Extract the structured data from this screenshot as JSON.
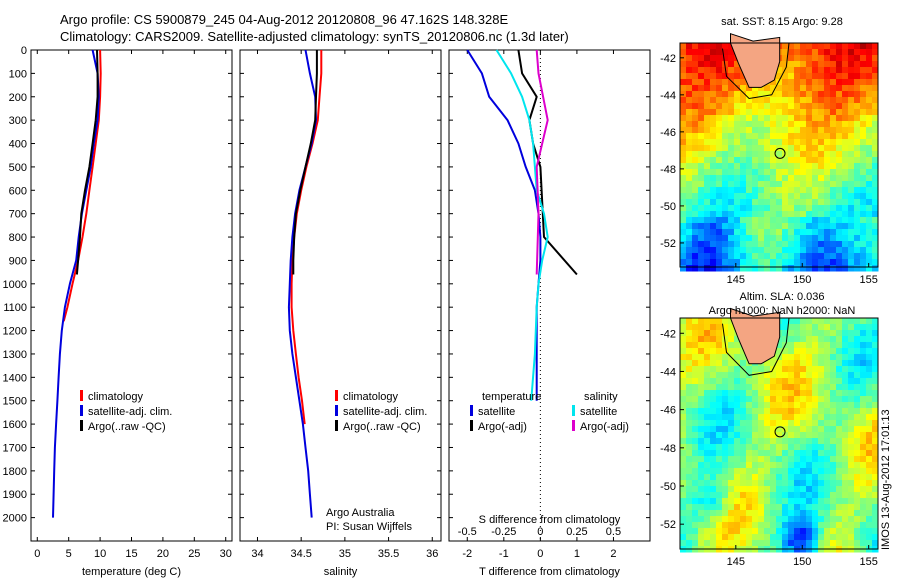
{
  "header": {
    "line1": "Argo profile: CS 5900879_245 04-Aug-2012 20120808_96 47.162S 148.328E",
    "line2": "Climatology: CARS2009. Satellite-adjusted climatology: synTS_20120806.nc (1.3d later)"
  },
  "colors": {
    "red": "#ff0000",
    "blue": "#0000dd",
    "black": "#000000",
    "cyan": "#00e5ee",
    "magenta": "#dd00cc"
  },
  "legends": {
    "profile": [
      {
        "label": "climatology",
        "color": "#ff0000"
      },
      {
        "label": "satellite-adj. clim.",
        "color": "#0000dd"
      },
      {
        "label": "Argo(..raw -QC)",
        "color": "#000000"
      }
    ],
    "difference": {
      "temperature_header": "temperature",
      "salinity_header": "salinity",
      "temperature": [
        {
          "label": "satellite",
          "color": "#0000dd"
        },
        {
          "label": "Argo(-adj)",
          "color": "#000000"
        }
      ],
      "salinity": [
        {
          "label": "satellite",
          "color": "#00e5ee"
        },
        {
          "label": "Argo(-adj)",
          "color": "#dd00cc"
        }
      ]
    }
  },
  "credits": {
    "line1": "Argo Australia",
    "line2": "PI: Susan Wijffels"
  },
  "maps": {
    "sst_title": "sat. SST: 8.15 Argo: 9.28",
    "sla_title1": "Altim. SLA: 0.036",
    "sla_title2": "Argo h1000: NaN h2000: NaN",
    "lat_ticks": [
      "-42",
      "-44",
      "-46",
      "-48",
      "-50",
      "-52"
    ],
    "lon_ticks": [
      "145",
      "150",
      "155"
    ],
    "argo_position": {
      "lon": 148.328,
      "lat": -47.162
    }
  },
  "imos_stamp": "IMOS 13-Aug-2012 17:01:13",
  "chart_data": [
    {
      "type": "line",
      "id": "temperature",
      "xlabel": "temperature (deg C)",
      "ylabel": "",
      "xlim": [
        -1,
        31
      ],
      "ylim": [
        2100,
        0
      ],
      "x_ticks": [
        0,
        5,
        10,
        15,
        20,
        25,
        30
      ],
      "y_ticks": [
        0,
        100,
        200,
        300,
        400,
        500,
        600,
        700,
        800,
        900,
        1000,
        1100,
        1200,
        1300,
        1400,
        1500,
        1600,
        1700,
        1800,
        1900,
        2000
      ],
      "series": [
        {
          "name": "climatology",
          "color": "#ff0000",
          "x": [
            10.0,
            10.1,
            10.0,
            9.8,
            9.3,
            8.8,
            8.3,
            7.8,
            7.2,
            6.5,
            5.6,
            4.8,
            4.2
          ],
          "y": [
            0,
            100,
            200,
            300,
            400,
            500,
            600,
            700,
            800,
            900,
            1000,
            1100,
            1160
          ]
        },
        {
          "name": "satellite-adj. clim.",
          "color": "#0000dd",
          "x": [
            8.8,
            9.6,
            9.8,
            9.6,
            9.0,
            8.5,
            7.8,
            7.1,
            6.6,
            6.2,
            5.2,
            4.4,
            3.9,
            3.6,
            3.4,
            3.2,
            3.0,
            2.8,
            2.7,
            2.6,
            2.5
          ],
          "y": [
            0,
            100,
            200,
            300,
            400,
            500,
            600,
            700,
            800,
            900,
            1000,
            1100,
            1200,
            1300,
            1400,
            1500,
            1600,
            1700,
            1800,
            1900,
            2000
          ]
        },
        {
          "name": "Argo(..raw -QC)",
          "color": "#000000",
          "x": [
            9.5,
            9.6,
            9.6,
            9.3,
            8.8,
            8.3,
            7.6,
            7.0,
            6.8,
            6.5,
            6.3
          ],
          "y": [
            0,
            100,
            200,
            300,
            400,
            500,
            600,
            700,
            800,
            900,
            960
          ]
        }
      ]
    },
    {
      "type": "line",
      "id": "salinity",
      "xlabel": "salinity",
      "ylabel": "",
      "xlim": [
        33.8,
        36.1
      ],
      "ylim": [
        2100,
        0
      ],
      "x_ticks": [
        34,
        34.5,
        35,
        35.5,
        36
      ],
      "series": [
        {
          "name": "climatology",
          "color": "#ff0000",
          "x": [
            34.73,
            34.73,
            34.71,
            34.69,
            34.63,
            34.56,
            34.5,
            34.45,
            34.42,
            34.4,
            34.39,
            34.39,
            34.41,
            34.44,
            34.47,
            34.51,
            34.54
          ],
          "y": [
            0,
            100,
            200,
            300,
            400,
            500,
            600,
            700,
            800,
            900,
            1000,
            1100,
            1200,
            1300,
            1400,
            1500,
            1600
          ]
        },
        {
          "name": "satellite-adj. clim.",
          "color": "#0000dd",
          "x": [
            34.55,
            34.6,
            34.66,
            34.67,
            34.62,
            34.55,
            34.48,
            34.43,
            34.4,
            34.38,
            34.37,
            34.36,
            34.37,
            34.4,
            34.44,
            34.48,
            34.52,
            34.55,
            34.58,
            34.6,
            34.62
          ],
          "y": [
            0,
            100,
            200,
            300,
            400,
            500,
            600,
            700,
            800,
            900,
            1000,
            1100,
            1200,
            1300,
            1400,
            1500,
            1600,
            1700,
            1800,
            1900,
            2000
          ]
        },
        {
          "name": "Argo(..raw -QC)",
          "color": "#000000",
          "x": [
            34.68,
            34.68,
            34.67,
            34.66,
            34.61,
            34.55,
            34.49,
            34.44,
            34.42,
            34.41,
            34.41
          ],
          "y": [
            0,
            100,
            200,
            300,
            400,
            500,
            600,
            700,
            800,
            900,
            960
          ]
        }
      ]
    },
    {
      "type": "line",
      "id": "difference",
      "xlabel": "T difference from climatology",
      "x2label": "S difference from climatology",
      "ylabel": "",
      "xlim": [
        -2.5,
        3.0
      ],
      "ylim": [
        2100,
        0
      ],
      "x_ticks": [
        -2,
        -1,
        0,
        1,
        2
      ],
      "x2_ticks": [
        "-0.5",
        "-0.25",
        "0",
        "0.25",
        "0.5"
      ],
      "x2_tick_positions": [
        -2,
        -1,
        0,
        1,
        2
      ],
      "zero_line": "dotted",
      "series": [
        {
          "name": "satellite (temperature)",
          "color": "#0000dd",
          "x": [
            -2.0,
            -1.6,
            -1.4,
            -0.9,
            -0.6,
            -0.4,
            -0.15,
            -0.05,
            0.0,
            0.0,
            -0.05,
            -0.1,
            -0.1
          ],
          "y": [
            0,
            100,
            200,
            300,
            400,
            500,
            600,
            700,
            800,
            900,
            1000,
            1100,
            1500
          ]
        },
        {
          "name": "Argo(-adj) (temperature)",
          "color": "#000000",
          "x": [
            -0.6,
            -0.5,
            -0.1,
            -0.3,
            -0.2,
            0.0,
            0.1,
            1.0
          ],
          "y": [
            0,
            100,
            200,
            300,
            400,
            500,
            800,
            960
          ]
        },
        {
          "name": "satellite (salinity)",
          "color": "#00e5ee",
          "x": [
            -1.2,
            -0.8,
            -0.5,
            -0.3,
            -0.2,
            -0.15,
            -0.1,
            0.1,
            0.2,
            0.05,
            -0.05,
            -0.1,
            -0.15,
            -0.25
          ],
          "y": [
            0,
            100,
            200,
            300,
            400,
            500,
            600,
            700,
            800,
            900,
            1000,
            1100,
            1300,
            1500
          ]
        },
        {
          "name": "Argo(-adj) (salinity)",
          "color": "#dd00cc",
          "x": [
            -0.1,
            -0.05,
            0.2,
            -0.1,
            -0.05,
            -0.1
          ],
          "y": [
            0,
            100,
            300,
            500,
            700,
            960
          ]
        }
      ]
    }
  ]
}
